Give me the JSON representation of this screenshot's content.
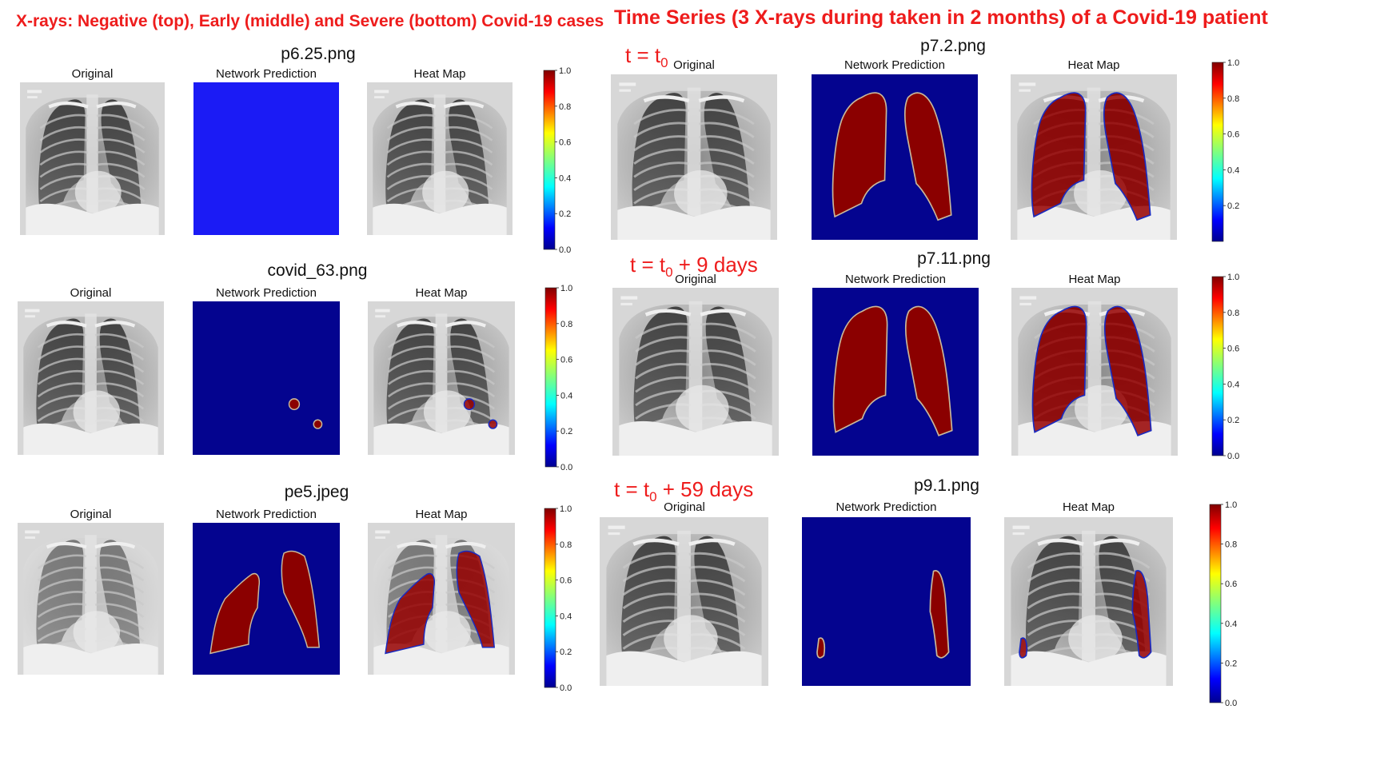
{
  "left_title": "X-rays: Negative (top), Early (middle) and Severe (bottom) Covid-19 cases",
  "right_title": "Time Series (3 X-rays during taken in 2 months) of a Covid-19 patient",
  "panel_titles": {
    "original": "Original",
    "prediction": "Network Prediction",
    "heatmap": "Heat Map"
  },
  "colorbar": {
    "ticks": [
      "0.0",
      "0.2",
      "0.4",
      "0.6",
      "0.8",
      "1.0"
    ]
  },
  "colors": {
    "title_red": "#ee1c1c",
    "mask_blue": "#04048f",
    "mask_red": "#8b0000",
    "blank_blue": "#1b1bf5"
  },
  "rows": [
    {
      "id": "neg",
      "filename": "p6.25.png",
      "blank_prediction": true
    },
    {
      "id": "early",
      "filename": "covid_63.png"
    },
    {
      "id": "severe",
      "filename": "pe5.jpeg"
    },
    {
      "id": "t0",
      "filename": "p7.2.png",
      "time_prefix": "t = t",
      "time_sub": "0",
      "time_suffix": ""
    },
    {
      "id": "t9",
      "filename": "p7.11.png",
      "time_prefix": "t = t",
      "time_sub": "0",
      "time_suffix": " + 9 days"
    },
    {
      "id": "t59",
      "filename": "p9.1.png",
      "time_prefix": "t = t",
      "time_sub": "0",
      "time_suffix": " + 59 days"
    }
  ]
}
